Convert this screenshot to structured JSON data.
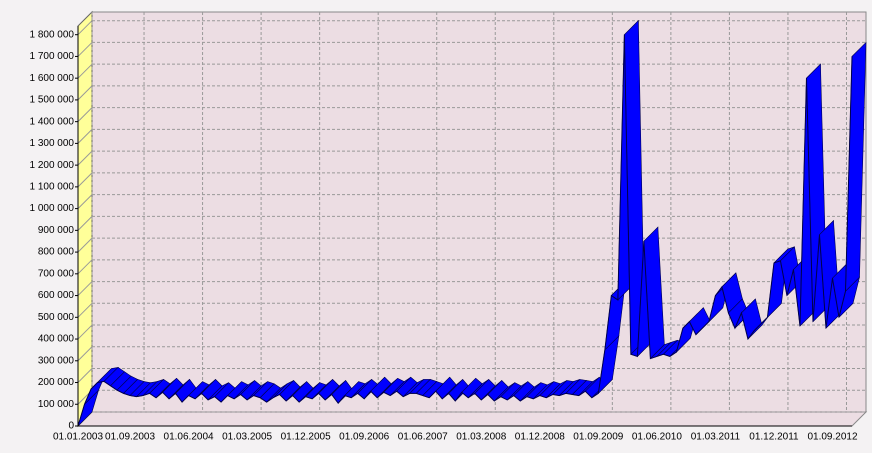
{
  "chart_data": {
    "type": "ribbon",
    "categories": [
      "01.01.2003",
      null,
      null,
      null,
      null,
      null,
      null,
      null,
      "01.09.2003",
      null,
      null,
      null,
      null,
      null,
      null,
      null,
      null,
      "01.06.2004",
      null,
      null,
      null,
      null,
      null,
      null,
      null,
      null,
      "01.03.2005",
      null,
      null,
      null,
      null,
      null,
      null,
      null,
      null,
      "01.12.2005",
      null,
      null,
      null,
      null,
      null,
      null,
      null,
      null,
      "01.09.2006",
      null,
      null,
      null,
      null,
      null,
      null,
      null,
      null,
      "01.06.2007",
      null,
      null,
      null,
      null,
      null,
      null,
      null,
      null,
      "01.03.2008",
      null,
      null,
      null,
      null,
      null,
      null,
      null,
      null,
      "01.12.2008",
      null,
      null,
      null,
      null,
      null,
      null,
      null,
      null,
      "01.09.2009",
      null,
      null,
      null,
      null,
      null,
      null,
      null,
      null,
      "01.06.2010",
      null,
      null,
      null,
      null,
      null,
      null,
      null,
      null,
      "01.03.2011",
      null,
      null,
      null,
      null,
      null,
      null,
      null,
      null,
      "01.12.2011",
      null,
      null,
      null,
      null,
      null,
      null,
      null,
      null,
      "01.09.2012",
      null,
      null,
      null
    ],
    "values": [
      0,
      100000,
      170000,
      200000,
      205000,
      185000,
      165000,
      150000,
      140000,
      135000,
      140000,
      150000,
      130000,
      155000,
      125000,
      150000,
      110000,
      140000,
      125000,
      150000,
      120000,
      135000,
      110000,
      140000,
      125000,
      145000,
      120000,
      140000,
      130000,
      110000,
      130000,
      145000,
      115000,
      140000,
      110000,
      135000,
      125000,
      150000,
      120000,
      145000,
      105000,
      140000,
      130000,
      150000,
      125000,
      160000,
      130000,
      155000,
      140000,
      160000,
      135000,
      150000,
      150000,
      140000,
      130000,
      160000,
      125000,
      150000,
      115000,
      155000,
      130000,
      150000,
      120000,
      145000,
      115000,
      135000,
      120000,
      140000,
      115000,
      135000,
      125000,
      140000,
      130000,
      145000,
      140000,
      150000,
      145000,
      140000,
      160000,
      130000,
      150000,
      350000,
      600000,
      580000,
      1800000,
      330000,
      320000,
      850000,
      310000,
      320000,
      330000,
      320000,
      340000,
      450000,
      480000,
      420000,
      450000,
      480000,
      600000,
      640000,
      520000,
      450000,
      520000,
      400000,
      440000,
      470000,
      500000,
      750000,
      760000,
      600000,
      720000,
      460000,
      1600000,
      480000,
      880000,
      450000,
      680000,
      500000,
      620000,
      1700000
    ],
    "color": "#0000ff",
    "ylim": [
      0,
      1840000
    ],
    "yticks": [
      0,
      {
        "value": 100000,
        "label": "100 000"
      },
      {
        "value": 200000,
        "label": "200 000"
      },
      {
        "value": 300000,
        "label": "300 000"
      },
      {
        "value": 400000,
        "label": "400 000"
      },
      {
        "value": 500000,
        "label": "500 000"
      },
      {
        "value": 600000,
        "label": "600 000"
      },
      {
        "value": 700000,
        "label": "700 000"
      },
      {
        "value": 800000,
        "label": "800 000"
      },
      {
        "value": 900000,
        "label": "900 000"
      },
      {
        "value": 1000000,
        "label": "1 000 000"
      },
      {
        "value": 1100000,
        "label": "1 100 000"
      },
      {
        "value": 1200000,
        "label": "1 200 000"
      },
      {
        "value": 1300000,
        "label": "1 300 000"
      },
      {
        "value": 1400000,
        "label": "1 400 000"
      },
      {
        "value": 1500000,
        "label": "1 500 000"
      },
      {
        "value": 1600000,
        "label": "1 600 000"
      },
      {
        "value": 1700000,
        "label": "1 700 000"
      },
      {
        "value": 1800000,
        "label": "1 800 000"
      }
    ],
    "grid": true
  }
}
